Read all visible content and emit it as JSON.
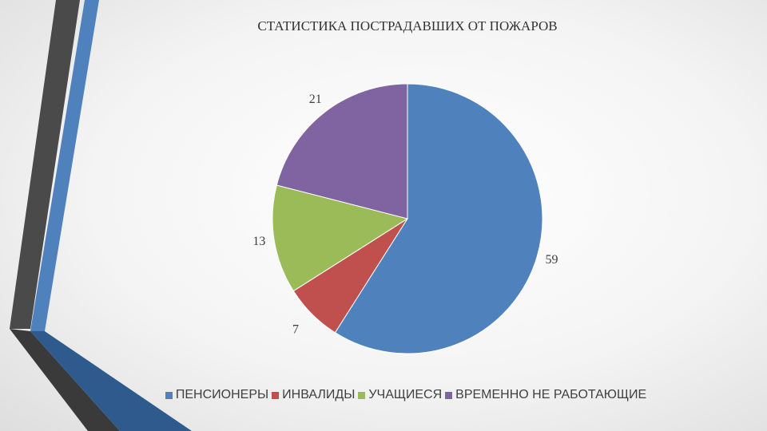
{
  "chart_data": {
    "type": "pie",
    "title": "СТАТИСТИКА ПОСТРАДАВШИХ ОТ ПОЖАРОВ",
    "categories": [
      "ПЕНСИОНЕРЫ",
      "ИНВАЛИДЫ",
      "УЧАЩИЕСЯ",
      "ВРЕМЕННО НЕ РАБОТАЮЩИЕ"
    ],
    "values": [
      59,
      7,
      13,
      21
    ],
    "colors": [
      "#4f81bd",
      "#c0504d",
      "#9bbb59",
      "#8064a2"
    ],
    "legend": "bottom"
  }
}
